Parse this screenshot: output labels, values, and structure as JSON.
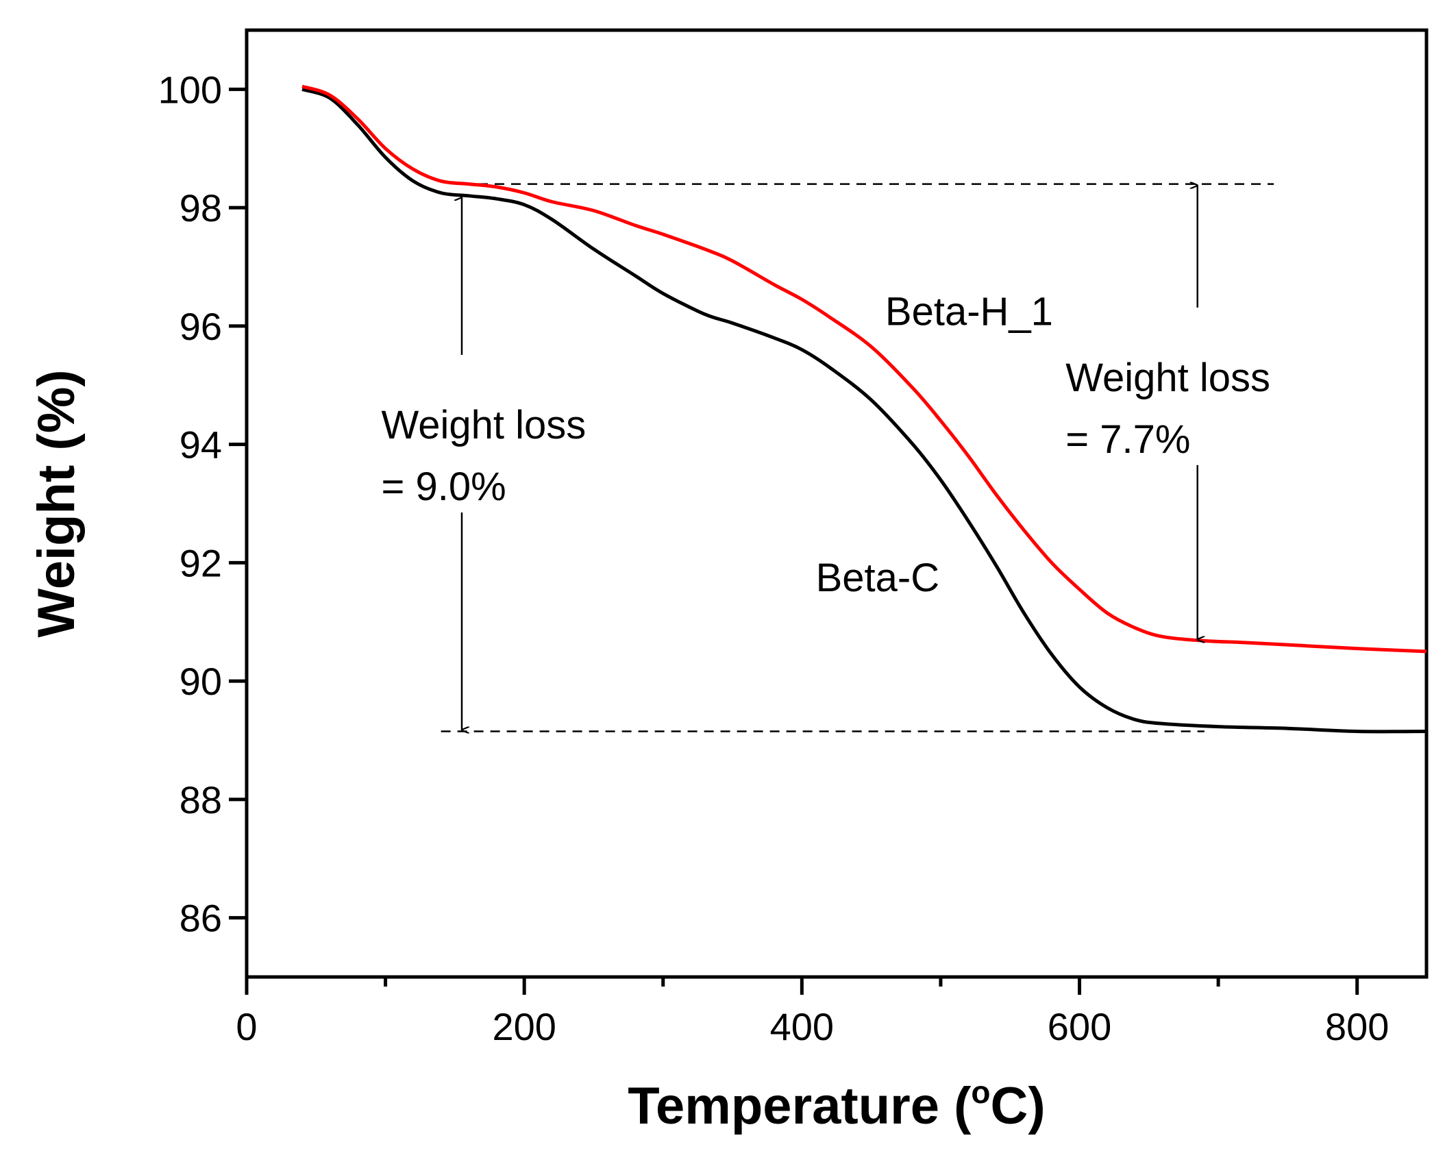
{
  "chart_data": {
    "type": "line",
    "title": "",
    "xlabel_main": "Temperature (",
    "xlabel_sup": "o",
    "xlabel_end": "C)",
    "ylabel": "Weight (%)",
    "xlim": [
      0,
      850
    ],
    "ylim": [
      85,
      101
    ],
    "x_ticks": [
      0,
      200,
      400,
      600,
      800
    ],
    "x_tick_labels": [
      "0",
      "200",
      "400",
      "600",
      "800"
    ],
    "x_minor_ticks": [
      100,
      300,
      500,
      700
    ],
    "y_ticks": [
      86,
      88,
      90,
      92,
      94,
      96,
      98,
      100
    ],
    "y_tick_labels": [
      "86",
      "88",
      "90",
      "92",
      "94",
      "96",
      "98",
      "100"
    ],
    "series": [
      {
        "name": "Beta-C",
        "color": "#000000",
        "points": [
          [
            40,
            100.0
          ],
          [
            60,
            99.85
          ],
          [
            80,
            99.4
          ],
          [
            100,
            98.85
          ],
          [
            120,
            98.45
          ],
          [
            140,
            98.25
          ],
          [
            160,
            98.2
          ],
          [
            180,
            98.15
          ],
          [
            200,
            98.05
          ],
          [
            220,
            97.8
          ],
          [
            250,
            97.3
          ],
          [
            280,
            96.85
          ],
          [
            300,
            96.55
          ],
          [
            330,
            96.2
          ],
          [
            350,
            96.05
          ],
          [
            380,
            95.8
          ],
          [
            400,
            95.6
          ],
          [
            420,
            95.3
          ],
          [
            450,
            94.75
          ],
          [
            480,
            94.0
          ],
          [
            500,
            93.4
          ],
          [
            520,
            92.7
          ],
          [
            540,
            91.95
          ],
          [
            560,
            91.15
          ],
          [
            580,
            90.45
          ],
          [
            600,
            89.9
          ],
          [
            620,
            89.55
          ],
          [
            640,
            89.35
          ],
          [
            660,
            89.28
          ],
          [
            700,
            89.23
          ],
          [
            750,
            89.2
          ],
          [
            800,
            89.15
          ],
          [
            850,
            89.15
          ]
        ]
      },
      {
        "name": "Beta-H_1",
        "color": "#ff0000",
        "points": [
          [
            40,
            100.05
          ],
          [
            60,
            99.9
          ],
          [
            80,
            99.5
          ],
          [
            100,
            99.0
          ],
          [
            120,
            98.65
          ],
          [
            140,
            98.45
          ],
          [
            160,
            98.4
          ],
          [
            180,
            98.35
          ],
          [
            200,
            98.25
          ],
          [
            220,
            98.1
          ],
          [
            250,
            97.95
          ],
          [
            280,
            97.7
          ],
          [
            300,
            97.55
          ],
          [
            330,
            97.3
          ],
          [
            350,
            97.1
          ],
          [
            380,
            96.7
          ],
          [
            400,
            96.45
          ],
          [
            420,
            96.15
          ],
          [
            450,
            95.65
          ],
          [
            480,
            94.95
          ],
          [
            500,
            94.4
          ],
          [
            520,
            93.8
          ],
          [
            540,
            93.15
          ],
          [
            560,
            92.55
          ],
          [
            580,
            92.0
          ],
          [
            600,
            91.55
          ],
          [
            620,
            91.15
          ],
          [
            640,
            90.9
          ],
          [
            660,
            90.75
          ],
          [
            690,
            90.68
          ],
          [
            720,
            90.65
          ],
          [
            760,
            90.6
          ],
          [
            800,
            90.55
          ],
          [
            850,
            90.5
          ]
        ]
      }
    ],
    "reference_lines": [
      {
        "x1": 155,
        "x2": 740,
        "y": 98.4
      },
      {
        "x1": 140,
        "x2": 690,
        "y": 89.15
      }
    ],
    "annotations": [
      {
        "lines": [
          "Weight loss",
          "= 9.0%"
        ],
        "x": 155,
        "y1": 98.2,
        "y2": 89.15,
        "text_x": 97,
        "text_y": 94.1
      },
      {
        "lines": [
          "Weight loss",
          "= 7.7%"
        ],
        "x": 685,
        "y1": 98.4,
        "y2": 90.68,
        "text_x": 590,
        "text_y": 94.9
      }
    ],
    "series_labels": [
      {
        "text": "Beta-H_1",
        "x": 460,
        "y": 96.25
      },
      {
        "text": "Beta-C",
        "x": 410,
        "y": 91.75
      }
    ]
  }
}
